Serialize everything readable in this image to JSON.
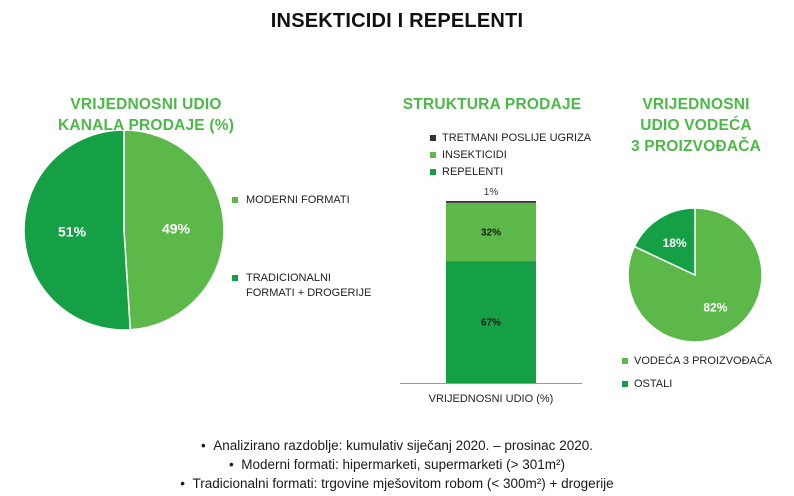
{
  "page": {
    "title": "INSEKTICIDI I REPELENTI"
  },
  "chart_data": [
    {
      "type": "pie",
      "title": "VRIJEDNOSNI UDIO KANALA PRODAJE (%)",
      "title_lines": [
        "VRIJEDNOSNI UDIO",
        "KANALA PRODAJE (%)"
      ],
      "slices": [
        {
          "name": "MODERNI FORMATI",
          "value": 49,
          "label": "49%",
          "color": "#5cb848"
        },
        {
          "name": "TRADICIONALNI FORMATI + DROGERIJE",
          "value": 51,
          "label": "51%",
          "color": "#15a046"
        }
      ],
      "legend": [
        {
          "lines": [
            "MODERNI FORMATI"
          ],
          "color": "#5cb848"
        },
        {
          "lines": [
            "TRADICIONALNI",
            "FORMATI + DROGERIJE"
          ],
          "color": "#15a046"
        }
      ],
      "legend_position": "right"
    },
    {
      "type": "bar",
      "stacked": true,
      "title": "STRUKTURA PRODAJE",
      "categories": [
        "VRIJEDNOSNI UDIO (%)"
      ],
      "series": [
        {
          "name": "REPELENTI",
          "values": [
            67
          ],
          "label": "67%",
          "color": "#15a046"
        },
        {
          "name": "INSEKTICIDI",
          "values": [
            32
          ],
          "label": "32%",
          "color": "#5cb848"
        },
        {
          "name": "TRETMANI POSLIJE UGRIZA",
          "values": [
            1
          ],
          "label": "1%",
          "color": "#333333"
        }
      ],
      "legend": [
        {
          "name": "TRETMANI POSLIJE UGRIZA",
          "color": "#333333"
        },
        {
          "name": "INSEKTICIDI",
          "color": "#5cb848"
        },
        {
          "name": "REPELENTI",
          "color": "#15a046"
        }
      ],
      "legend_position": "top",
      "ylim": [
        0,
        100
      ]
    },
    {
      "type": "pie",
      "title": "VRIJEDNOSNI UDIO VODEĆA 3 PROIZVOĐAČA",
      "title_lines": [
        "VRIJEDNOSNI",
        "UDIO VODEĆA",
        "3 PROIZVOĐAČA"
      ],
      "slices": [
        {
          "name": "VODEĆA 3 PROIZVOĐAČA",
          "value": 82,
          "label": "82%",
          "color": "#5cb848"
        },
        {
          "name": "OSTALI",
          "value": 18,
          "label": "18%",
          "color": "#15a046"
        }
      ],
      "legend": [
        {
          "lines": [
            "VODEĆA 3 PROIZVOĐAČA"
          ],
          "color": "#5cb848"
        },
        {
          "lines": [
            "OSTALI"
          ],
          "color": "#15a046"
        }
      ],
      "legend_position": "bottom"
    }
  ],
  "notes": [
    "Analizirano razdoblje: kumulativ siječanj 2020. – prosinac 2020.",
    "Moderni formati: hipermarketi, supermarketi (> 301m²)",
    "Tradicionalni formati: trgovine mješovitom robom (< 300m²) + drogerije"
  ]
}
